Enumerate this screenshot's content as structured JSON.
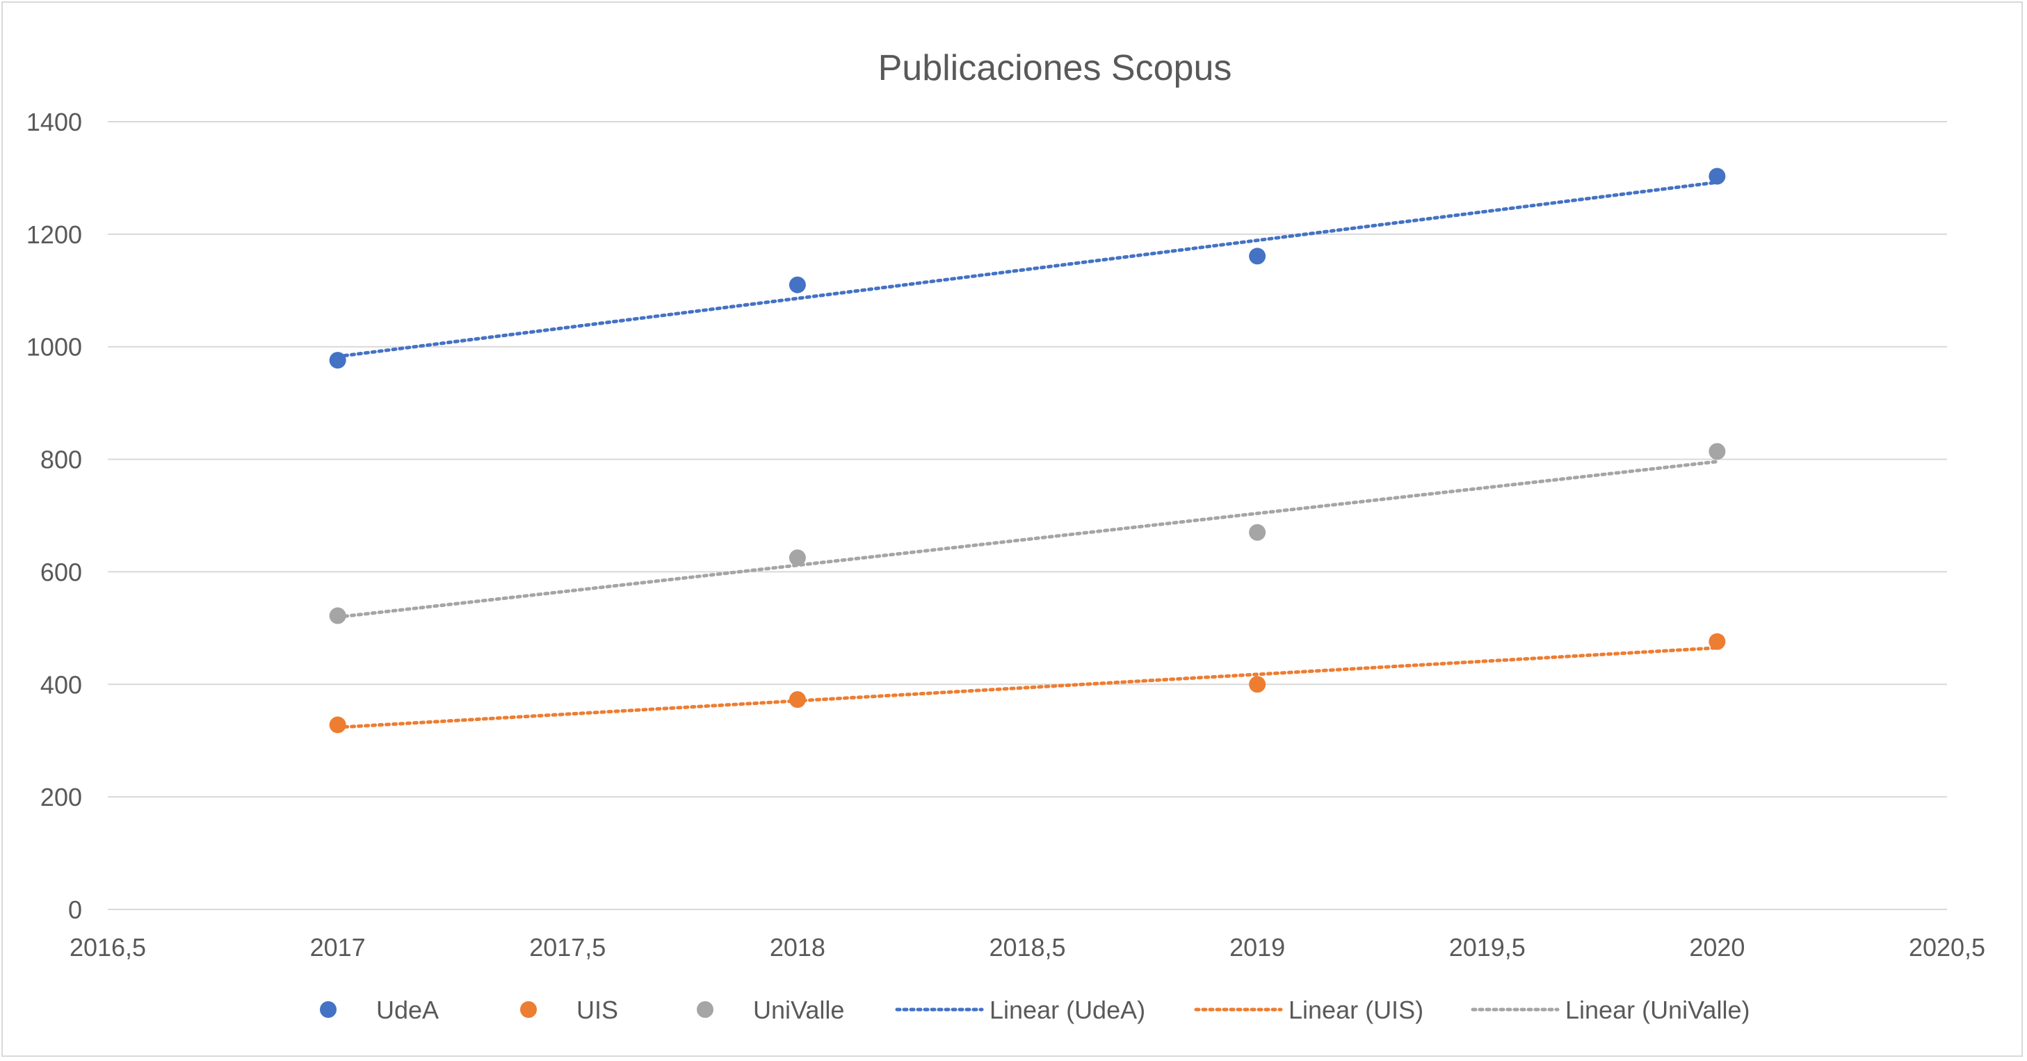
{
  "chart_data": {
    "type": "scatter",
    "title": "Publicaciones Scopus",
    "xlabel": "",
    "ylabel": "",
    "xlim": [
      2016.5,
      2020.5
    ],
    "ylim": [
      0,
      1400
    ],
    "x_ticks": [
      "2016,5",
      "2017",
      "2017,5",
      "2018",
      "2018,5",
      "2019",
      "2019,5",
      "2020",
      "2020,5"
    ],
    "x_tick_values": [
      2016.5,
      2017,
      2017.5,
      2018,
      2018.5,
      2019,
      2019.5,
      2020,
      2020.5
    ],
    "y_ticks": [
      "0",
      "200",
      "400",
      "600",
      "800",
      "1000",
      "1200",
      "1400"
    ],
    "y_tick_values": [
      0,
      200,
      400,
      600,
      800,
      1000,
      1200,
      1400
    ],
    "grid": "horizontal",
    "legend_position": "bottom",
    "x": [
      2017,
      2018,
      2019,
      2020
    ],
    "series": [
      {
        "name": "UdeA",
        "values": [
          976,
          1110,
          1161,
          1303
        ],
        "color": "#4472c4"
      },
      {
        "name": "UIS",
        "values": [
          328,
          373,
          400,
          476
        ],
        "color": "#ed7d31"
      },
      {
        "name": "UniValle",
        "values": [
          522,
          625,
          670,
          814
        ],
        "color": "#a5a5a5"
      }
    ],
    "trendlines": [
      {
        "name": "Linear (UdeA)",
        "series": "UdeA",
        "type": "linear",
        "color": "#4472c4"
      },
      {
        "name": "Linear (UIS)",
        "series": "UIS",
        "type": "linear",
        "color": "#ed7d31"
      },
      {
        "name": "Linear (UniValle)",
        "series": "UniValle",
        "type": "linear",
        "color": "#a5a5a5"
      }
    ]
  }
}
